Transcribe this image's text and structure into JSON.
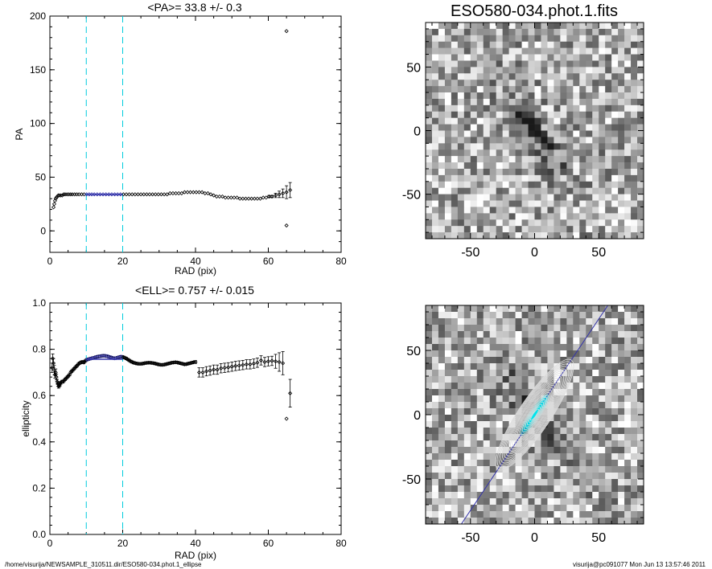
{
  "footer": {
    "left": "/home/visurija/NEWSAMPLE_310511.dir/ESO580-034.phot.1_ellipse",
    "right": "visurija@pc091077  Mon Jun 13 13:57:46 2011"
  },
  "chart_data": [
    {
      "type": "scatter",
      "title": "<PA>=  33.8 +/-   0.3",
      "xlabel": "RAD (pix)",
      "ylabel": "PA",
      "xlim": [
        0,
        80
      ],
      "ylim": [
        -20,
        200
      ],
      "xticks": [
        0,
        20,
        40,
        60,
        80
      ],
      "yticks": [
        0,
        50,
        100,
        150,
        200
      ],
      "vlines": [
        10,
        20
      ],
      "vline_color": "#00ccdd",
      "fit_color": "#3333aa",
      "fit_range": [
        10,
        20
      ],
      "fit_value": 33.8,
      "series": [
        {
          "values_x": [
            1.0,
            1.2,
            1.4,
            1.6,
            1.8,
            2.0,
            2.3,
            2.6,
            3.0,
            3.4,
            3.8,
            4.2,
            4.7,
            5.2,
            5.7,
            6.2,
            6.8,
            7.4,
            8.0,
            8.7,
            9.4,
            10.1,
            10.8,
            11.5,
            12.2,
            13.0,
            13.8,
            14.6,
            15.4,
            16.2,
            17.0,
            17.8,
            18.6,
            19.4,
            20.2,
            21.0,
            21.8,
            22.6,
            23.4,
            24.2,
            25.0,
            25.8,
            26.6,
            27.4,
            28.2,
            29.0,
            29.8,
            30.6,
            31.4,
            32.2,
            33.0,
            33.8,
            34.6,
            35.4,
            36.2,
            37.0,
            37.8,
            38.6,
            39.4,
            40.2,
            41.0,
            41.8,
            42.6,
            43.4,
            44.2,
            45.0,
            45.8,
            46.6,
            47.4,
            48.2,
            49.0,
            49.8,
            50.6,
            51.4,
            52.2,
            53.0,
            53.8,
            54.6,
            55.4,
            56.2,
            57.0,
            57.8,
            58.6,
            59.4,
            60.2,
            61.0,
            62.0,
            63.0,
            64.0,
            65.0,
            66.0
          ],
          "values_y": [
            22,
            25,
            28,
            30,
            31,
            32,
            33,
            33,
            33,
            33,
            34,
            34,
            34,
            34,
            34,
            34,
            34,
            34,
            34,
            34,
            34,
            34,
            34,
            34,
            34,
            34,
            34,
            34,
            34,
            34,
            34,
            34,
            34,
            34,
            34,
            34,
            34,
            34,
            34,
            34,
            34,
            34,
            34,
            34,
            34,
            34,
            34,
            34,
            34,
            34,
            35,
            35,
            35,
            35,
            35,
            36,
            36,
            36,
            36,
            36,
            36,
            36,
            35,
            35,
            34,
            33,
            32,
            32,
            32,
            31,
            31,
            31,
            31,
            31,
            30,
            30,
            30,
            30,
            30,
            30,
            30,
            30,
            31,
            31,
            32,
            32,
            33,
            34,
            35,
            36,
            38
          ],
          "errors": [
            0,
            0,
            0,
            0,
            0,
            0,
            0,
            0,
            0,
            0,
            0,
            0,
            0,
            0,
            0,
            0,
            0,
            0,
            0,
            0,
            0,
            0,
            0,
            0,
            0,
            0,
            0,
            0,
            0,
            0,
            0,
            0,
            0,
            0,
            0,
            0,
            0,
            0,
            0,
            0,
            0,
            0,
            0,
            0,
            0,
            0,
            0,
            0,
            0,
            0,
            0,
            0,
            0,
            0,
            0,
            0,
            0,
            0,
            0,
            0,
            0,
            0,
            0,
            0,
            0,
            0,
            0,
            0,
            0,
            0,
            0,
            0,
            0,
            0,
            0,
            0,
            0,
            0,
            0,
            0,
            0,
            0,
            0,
            0,
            1,
            1,
            2,
            3,
            4,
            6,
            7
          ],
          "outliers_x": [
            65,
            65
          ],
          "outliers_y": [
            186,
            5
          ]
        }
      ]
    },
    {
      "type": "scatter",
      "title": "<ELL>= 0.757 +/-  0.015",
      "xlabel": "RAD (pix)",
      "ylabel": "ellipticity",
      "xlim": [
        0,
        80
      ],
      "ylim": [
        0.0,
        1.0
      ],
      "xticks": [
        0,
        20,
        40,
        60,
        80
      ],
      "yticks": [
        0.0,
        0.2,
        0.4,
        0.6,
        0.8,
        1.0
      ],
      "vlines": [
        10,
        20
      ],
      "vline_color": "#00ccdd",
      "fit_color": "#3333aa",
      "fit_range": [
        10,
        20
      ],
      "fit_value": 0.757,
      "series": [
        {
          "values_x": [
            0.6,
            0.8,
            1.0,
            1.2,
            1.4,
            1.6,
            1.8,
            2.0,
            2.2,
            2.4,
            2.6,
            2.8,
            3.0,
            3.3,
            3.6,
            3.9,
            4.2,
            4.5,
            4.8,
            5.1,
            5.4,
            5.7,
            6.0,
            6.3,
            6.6,
            6.9,
            7.2,
            7.5,
            7.8,
            8.1,
            8.4,
            8.7,
            9.0,
            9.3,
            9.6,
            9.9,
            10.2,
            10.6,
            11.0,
            11.4,
            11.8,
            12.2,
            12.6,
            13.0,
            13.4,
            13.8,
            14.2,
            14.6,
            15.0,
            15.4,
            15.8,
            16.2,
            16.6,
            17.0,
            17.4,
            17.8,
            18.2,
            18.6,
            19.0,
            19.4,
            19.8,
            20.2,
            20.6,
            21.0,
            21.4,
            21.8,
            22.2,
            22.6,
            23.0,
            23.5,
            24.0,
            24.5,
            25.0,
            25.5,
            26.0,
            26.5,
            27.0,
            27.5,
            28.0,
            28.5,
            29.0,
            29.5,
            30.0,
            30.5,
            31.0,
            31.5,
            32.0,
            32.5,
            33.0,
            33.5,
            34.0,
            34.5,
            35.0,
            35.5,
            36.0,
            36.5,
            37.0,
            37.5,
            38.0,
            38.5,
            39.0,
            39.5,
            40.0
          ],
          "values_y": [
            0.72,
            0.76,
            0.74,
            0.71,
            0.69,
            0.7,
            0.68,
            0.66,
            0.65,
            0.64,
            0.645,
            0.65,
            0.655,
            0.66,
            0.66,
            0.665,
            0.67,
            0.675,
            0.68,
            0.685,
            0.69,
            0.7,
            0.705,
            0.71,
            0.715,
            0.72,
            0.725,
            0.73,
            0.735,
            0.74,
            0.742,
            0.745,
            0.745,
            0.743,
            0.748,
            0.752,
            0.755,
            0.757,
            0.759,
            0.761,
            0.762,
            0.764,
            0.766,
            0.768,
            0.769,
            0.77,
            0.771,
            0.772,
            0.772,
            0.771,
            0.77,
            0.768,
            0.766,
            0.764,
            0.762,
            0.761,
            0.762,
            0.764,
            0.766,
            0.768,
            0.768,
            0.766,
            0.763,
            0.76,
            0.756,
            0.752,
            0.748,
            0.745,
            0.742,
            0.74,
            0.738,
            0.737,
            0.737,
            0.738,
            0.74,
            0.741,
            0.742,
            0.742,
            0.741,
            0.74,
            0.738,
            0.736,
            0.734,
            0.733,
            0.733,
            0.734,
            0.736,
            0.738,
            0.74,
            0.742,
            0.743,
            0.744,
            0.743,
            0.741,
            0.739,
            0.737,
            0.735,
            0.736,
            0.738,
            0.74,
            0.742,
            0.744,
            0.745
          ],
          "errors": [
            0.02,
            0.02,
            0.02,
            0.02,
            0.015,
            0.015,
            0.012,
            0.01,
            0.01,
            0.008,
            0.008,
            0.008,
            0.006,
            0.006,
            0.006,
            0.005,
            0.005,
            0.005,
            0.005,
            0.005,
            0.005,
            0.005,
            0.005,
            0.005,
            0.005,
            0.005,
            0.005,
            0.005,
            0.005,
            0.005,
            0.005,
            0.005,
            0.005,
            0.005,
            0.005,
            0.005,
            0.005,
            0.005,
            0.005,
            0.005,
            0.005,
            0.005,
            0.005,
            0.005,
            0.005,
            0.005,
            0.005,
            0.005,
            0.005,
            0.005,
            0.005,
            0.005,
            0.005,
            0.005,
            0.005,
            0.005,
            0.005,
            0.005,
            0.005,
            0.005,
            0.005,
            0.005,
            0.005,
            0.005,
            0.005,
            0.005,
            0.005,
            0.005,
            0.005,
            0.005,
            0.005,
            0.005,
            0.005,
            0.005,
            0.005,
            0.005,
            0.005,
            0.005,
            0.005,
            0.005,
            0.005,
            0.005,
            0.005,
            0.005,
            0.005,
            0.005,
            0.005,
            0.005,
            0.005,
            0.005,
            0.005,
            0.005,
            0.005,
            0.005,
            0.005,
            0.005,
            0.005,
            0.005,
            0.005,
            0.005,
            0.005,
            0.005,
            0.006
          ]
        },
        {
          "values_x": [
            41.0,
            42.0,
            43.0,
            44.0,
            45.0,
            46.0,
            47.0,
            48.0,
            49.0,
            50.0,
            51.0,
            52.0,
            53.0,
            54.0,
            55.0,
            56.0,
            57.0,
            58.0,
            59.0,
            60.0,
            61.0,
            62.0,
            63.0,
            64.0,
            66.0
          ],
          "values_y": [
            0.7,
            0.7,
            0.705,
            0.708,
            0.712,
            0.712,
            0.718,
            0.72,
            0.722,
            0.725,
            0.728,
            0.73,
            0.732,
            0.735,
            0.735,
            0.738,
            0.742,
            0.752,
            0.745,
            0.748,
            0.75,
            0.748,
            0.745,
            0.74,
            0.61
          ],
          "errors": [
            0.02,
            0.02,
            0.02,
            0.02,
            0.02,
            0.02,
            0.02,
            0.02,
            0.02,
            0.02,
            0.02,
            0.02,
            0.02,
            0.02,
            0.02,
            0.02,
            0.02,
            0.02,
            0.02,
            0.02,
            0.02,
            0.03,
            0.04,
            0.05,
            0.06
          ],
          "outliers_x": [
            65
          ],
          "outliers_y": [
            0.5
          ]
        }
      ]
    },
    {
      "type": "heatmap",
      "title": "ESO580-034.phot.1.fits",
      "xlim": [
        -85,
        85
      ],
      "ylim": [
        -85,
        85
      ],
      "xticks": [
        -50,
        0,
        50
      ],
      "yticks": [
        -50,
        0,
        50
      ],
      "galaxy_pa_deg": 33.8,
      "ellipticity": 0.757
    },
    {
      "type": "heatmap",
      "title": "",
      "xlim": [
        -85,
        85
      ],
      "ylim": [
        -85,
        85
      ],
      "xticks": [
        -50,
        0,
        50
      ],
      "yticks": [
        -50,
        0,
        50
      ],
      "galaxy_pa_deg": 33.8,
      "ellipticity": 0.757,
      "contour_color": "#dddddd",
      "core_color": "#00e5ee",
      "axis_line_color": "#3333aa"
    }
  ]
}
